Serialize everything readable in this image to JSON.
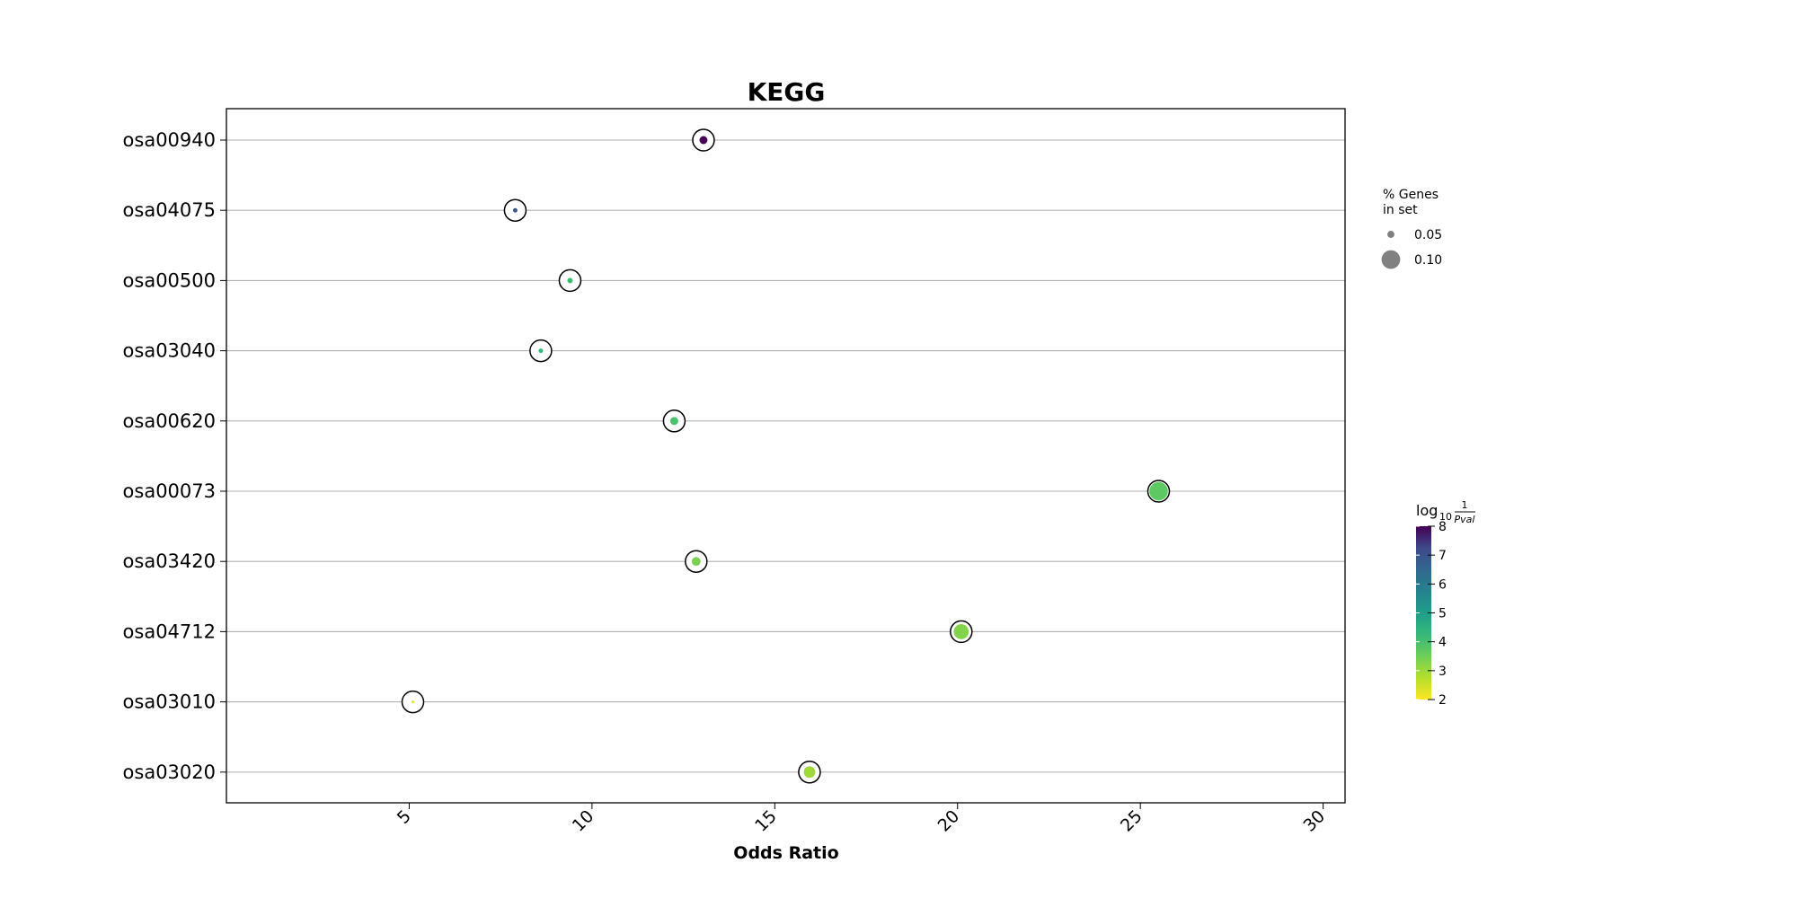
{
  "chart_data": {
    "type": "scatter",
    "title": "KEGG",
    "xlabel": "Odds Ratio",
    "ylabel": "",
    "xlim": [
      0,
      30.6
    ],
    "xticks": [
      5,
      10,
      15,
      20,
      25,
      30
    ],
    "categories": [
      "osa00940",
      "osa04075",
      "osa00500",
      "osa03040",
      "osa00620",
      "osa00073",
      "osa03420",
      "osa04712",
      "osa03010",
      "osa03020"
    ],
    "points": [
      {
        "term": "osa00940",
        "odds_ratio": 13.05,
        "pct_genes": 0.06,
        "neg_log10_pval": 8.0,
        "color": "#440154"
      },
      {
        "term": "osa04075",
        "odds_ratio": 7.9,
        "pct_genes": 0.04,
        "neg_log10_pval": 5.8,
        "color": "#3b528b"
      },
      {
        "term": "osa00500",
        "odds_ratio": 9.4,
        "pct_genes": 0.045,
        "neg_log10_pval": 3.9,
        "color": "#3cbb75"
      },
      {
        "term": "osa03040",
        "odds_ratio": 8.6,
        "pct_genes": 0.04,
        "neg_log10_pval": 3.8,
        "color": "#35b779"
      },
      {
        "term": "osa00620",
        "odds_ratio": 12.25,
        "pct_genes": 0.06,
        "neg_log10_pval": 3.6,
        "color": "#4ac16d"
      },
      {
        "term": "osa00073",
        "odds_ratio": 25.5,
        "pct_genes": 0.12,
        "neg_log10_pval": 3.4,
        "color": "#5ec962"
      },
      {
        "term": "osa03420",
        "odds_ratio": 12.85,
        "pct_genes": 0.065,
        "neg_log10_pval": 3.1,
        "color": "#7ad151"
      },
      {
        "term": "osa04712",
        "odds_ratio": 20.1,
        "pct_genes": 0.1,
        "neg_log10_pval": 3.0,
        "color": "#84d44b"
      },
      {
        "term": "osa03010",
        "odds_ratio": 5.1,
        "pct_genes": 0.03,
        "neg_log10_pval": 2.2,
        "color": "#dde318"
      },
      {
        "term": "osa03020",
        "odds_ratio": 15.95,
        "pct_genes": 0.08,
        "neg_log10_pval": 2.8,
        "color": "#a0da39"
      }
    ],
    "size_legend": {
      "title_lines": [
        "% Genes",
        "in set"
      ],
      "entries": [
        {
          "label": "0.05",
          "value": 0.05
        },
        {
          "label": "0.10",
          "value": 0.1
        }
      ],
      "color": "#808080",
      "placement": "right"
    },
    "colorbar": {
      "title_main": "log",
      "title_sub": "10",
      "frac_num": "1",
      "frac_den": "Pval",
      "min": 2,
      "max": 8,
      "ticks": [
        2,
        3,
        4,
        5,
        6,
        7,
        8
      ],
      "colormap": "viridis_r",
      "placement": "right"
    },
    "grid": {
      "horizontal": true,
      "vertical": false
    },
    "ring_color": "#000000"
  }
}
